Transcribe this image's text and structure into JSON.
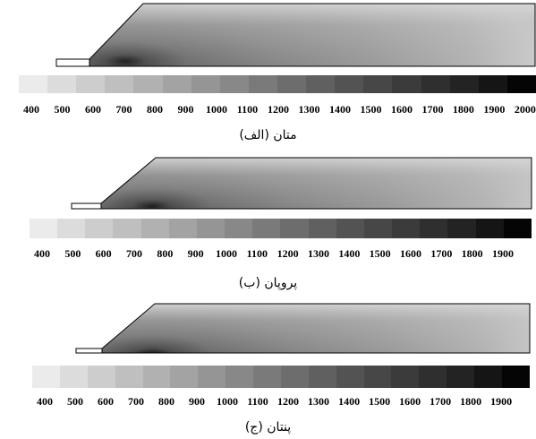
{
  "legend_colors": [
    "#ebebeb",
    "#dcdcdc",
    "#cdcdcd",
    "#bfbfbf",
    "#b1b1b1",
    "#a3a3a3",
    "#959595",
    "#888888",
    "#7a7a7a",
    "#6d6d6d",
    "#606060",
    "#535353",
    "#474747",
    "#3b3b3b",
    "#2f2f2f",
    "#232323",
    "#151515",
    "#050505"
  ],
  "panels": [
    {
      "id": "a",
      "caption": "(الف) متان",
      "tick_labels": [
        "400",
        "500",
        "600",
        "700",
        "800",
        "900",
        "1000",
        "1100",
        "1200",
        "1300",
        "1400",
        "1500",
        "1600",
        "1700",
        "1800",
        "1900",
        "2000"
      ]
    },
    {
      "id": "b",
      "caption": "(ب) پروپان",
      "tick_labels": [
        "400",
        "500",
        "600",
        "700",
        "800",
        "900",
        "1000",
        "1100",
        "1200",
        "1300",
        "1400",
        "1500",
        "1600",
        "1700",
        "1800",
        "1900"
      ]
    },
    {
      "id": "c",
      "caption": "(ج) پنتان",
      "tick_labels": [
        "400",
        "500",
        "600",
        "700",
        "800",
        "900",
        "1000",
        "1100",
        "1200",
        "1300",
        "1400",
        "1500",
        "1600",
        "1700",
        "1800",
        "1900"
      ]
    }
  ]
}
